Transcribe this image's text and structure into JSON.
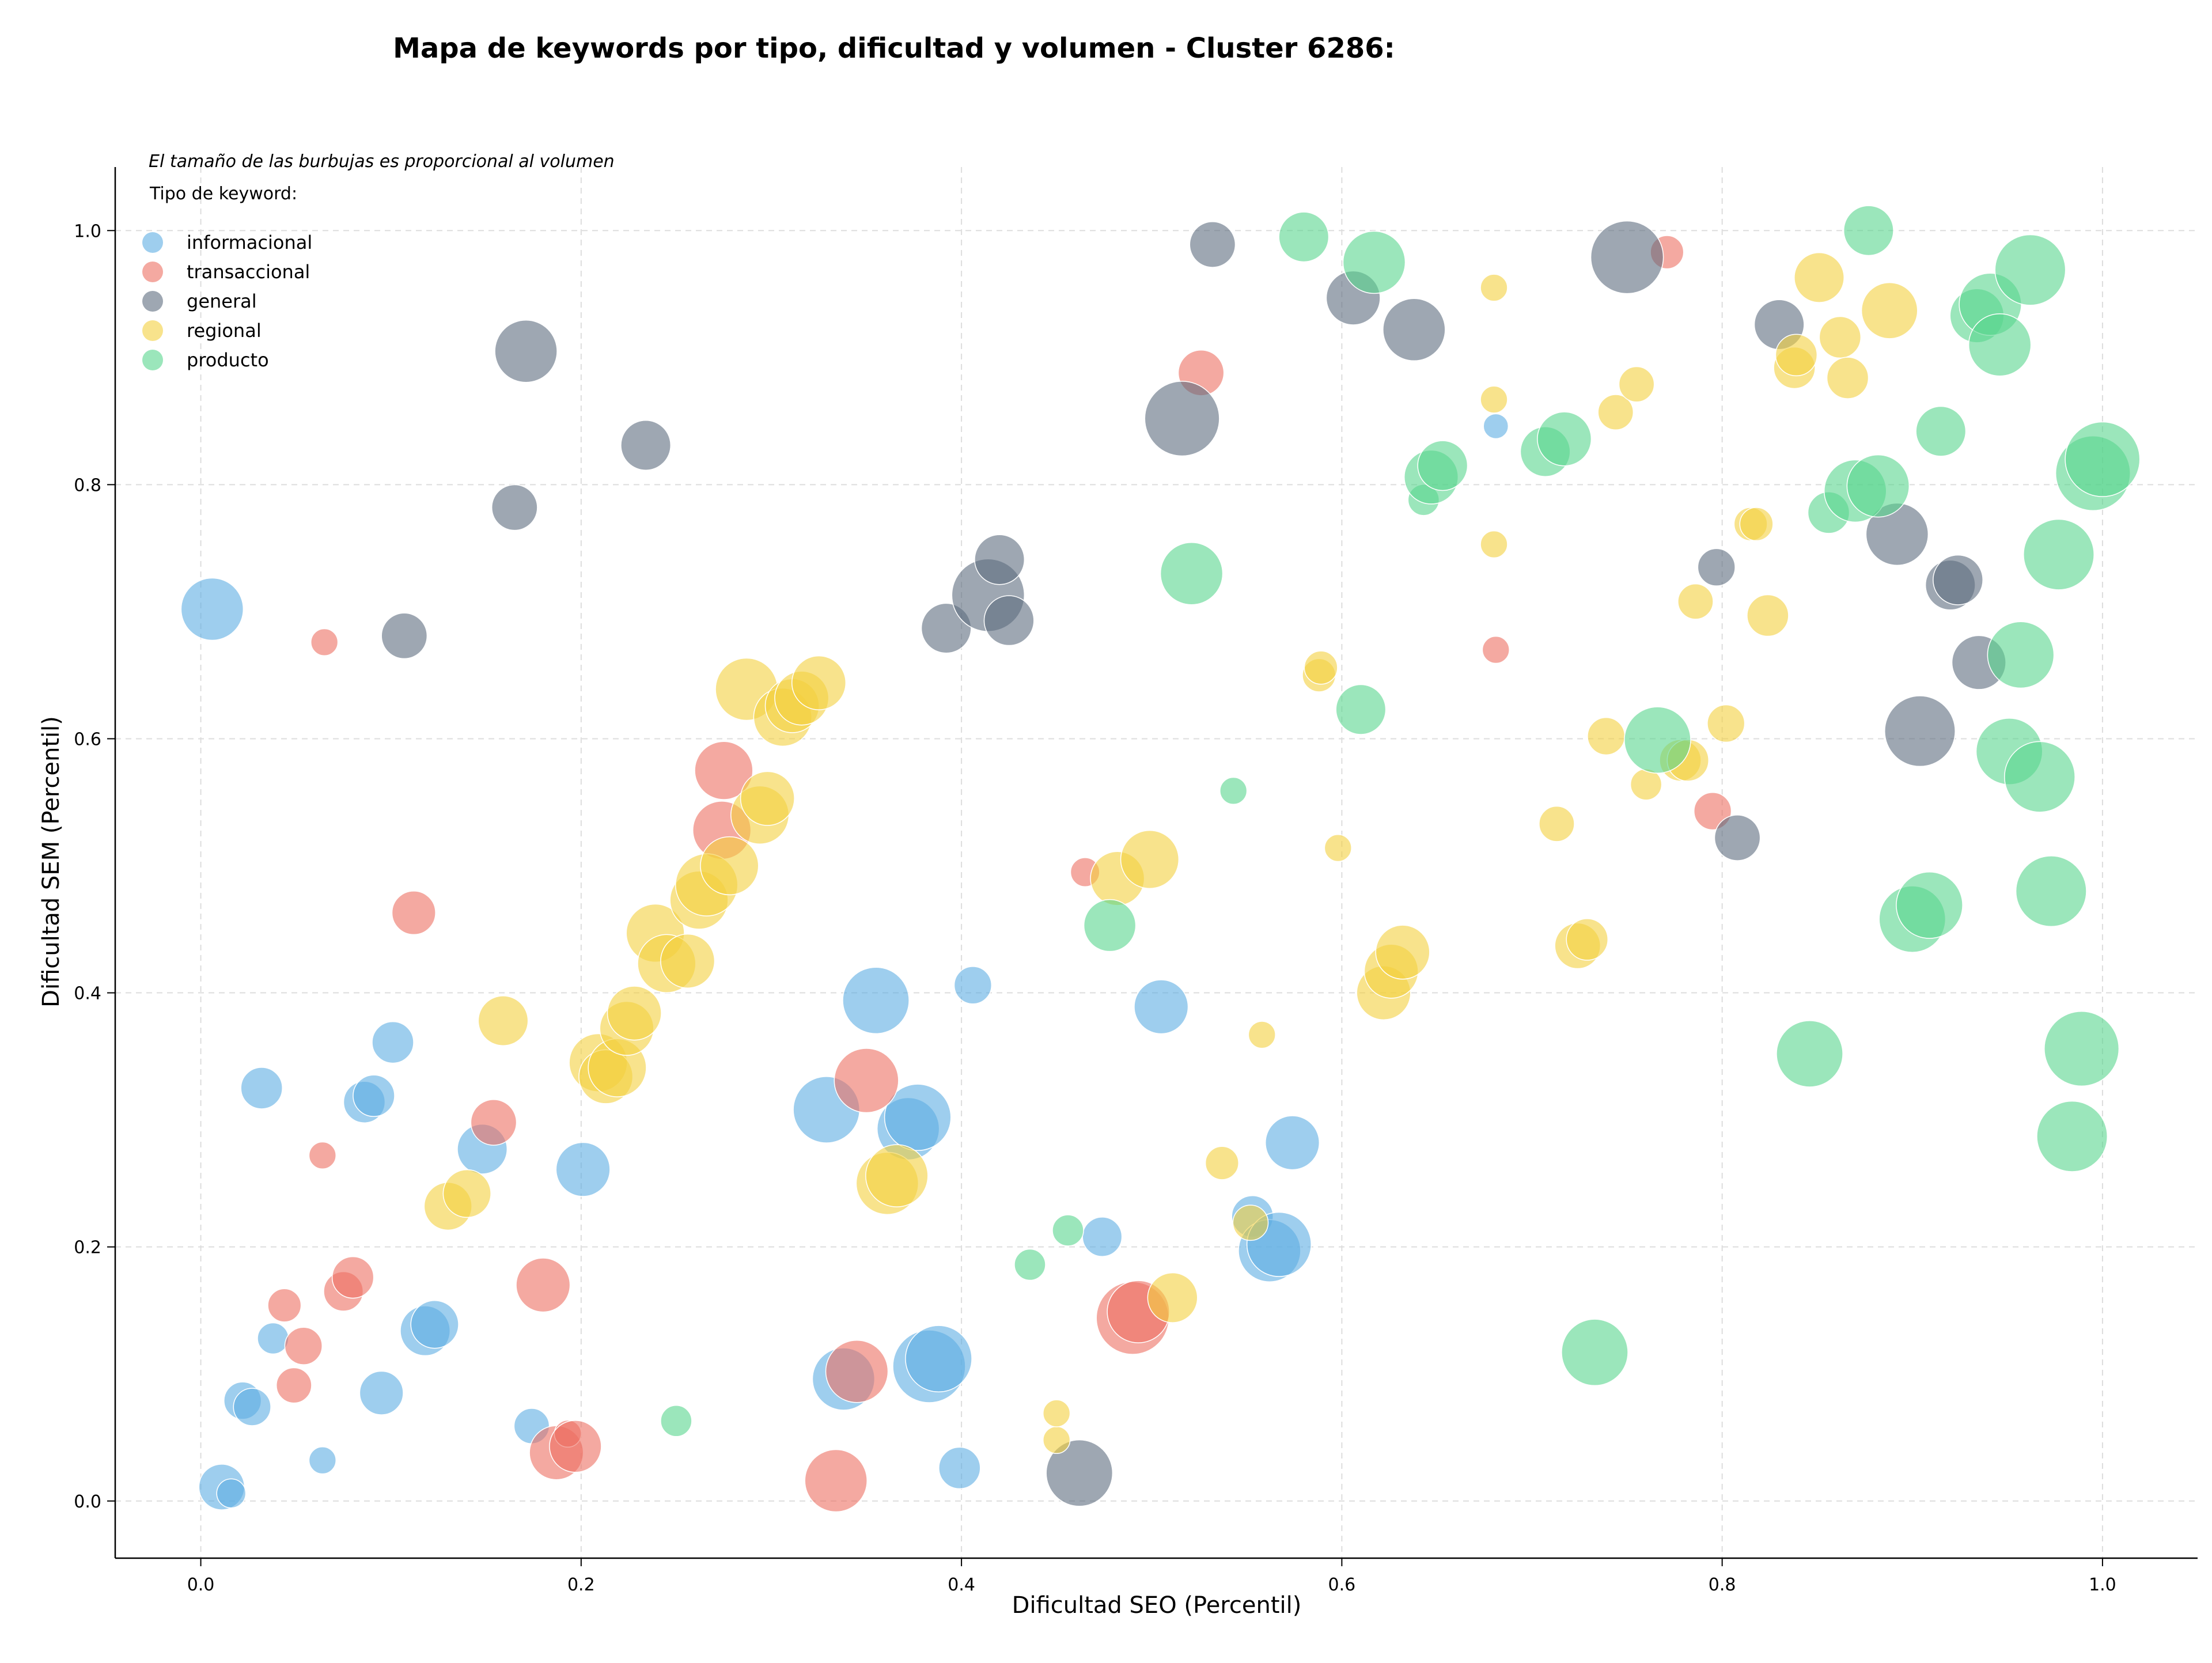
{
  "chart_data": {
    "type": "scatter",
    "title": "Mapa de keywords por tipo, dificultad y volumen - Cluster 6286:",
    "xlabel": "Dificultad SEO (Percentil)",
    "ylabel": "Dificultad SEM (Percentil)",
    "xlim": [
      -0.045,
      1.05
    ],
    "ylim": [
      -0.045,
      1.05
    ],
    "xticks": [
      "0.0",
      "0.2",
      "0.4",
      "0.6",
      "0.8",
      "1.0"
    ],
    "yticks": [
      "0.0",
      "0.2",
      "0.4",
      "0.6",
      "0.8",
      "1.0"
    ],
    "grid": true,
    "legend_position": "top-left",
    "legend_note": "El tamaño de las burbujas es proporcional al volumen",
    "legend_title": "Tipo de keyword:",
    "series": [
      {
        "name": "informacional",
        "color": "#5DADE2",
        "points": [
          [
            0.006,
            0.702,
            3.0
          ],
          [
            0.032,
            0.325,
            2.0
          ],
          [
            0.086,
            0.314,
            2.0
          ],
          [
            0.091,
            0.319,
            2.0
          ],
          [
            0.101,
            0.361,
            2.0
          ],
          [
            0.148,
            0.277,
            2.4
          ],
          [
            0.201,
            0.261,
            2.6
          ],
          [
            0.038,
            0.128,
            1.5
          ],
          [
            0.022,
            0.079,
            1.8
          ],
          [
            0.027,
            0.074,
            1.8
          ],
          [
            0.095,
            0.085,
            2.1
          ],
          [
            0.118,
            0.134,
            2.4
          ],
          [
            0.123,
            0.139,
            2.3
          ],
          [
            0.064,
            0.032,
            1.3
          ],
          [
            0.011,
            0.011,
            2.2
          ],
          [
            0.016,
            0.006,
            1.4
          ],
          [
            0.174,
            0.059,
            1.7
          ],
          [
            0.329,
            0.308,
            3.2
          ],
          [
            0.355,
            0.394,
            3.2
          ],
          [
            0.372,
            0.293,
            3.0
          ],
          [
            0.377,
            0.302,
            3.2
          ],
          [
            0.406,
            0.406,
            1.8
          ],
          [
            0.338,
            0.096,
            3.0
          ],
          [
            0.383,
            0.106,
            3.5
          ],
          [
            0.388,
            0.112,
            3.2
          ],
          [
            0.399,
            0.026,
            2.0
          ],
          [
            0.474,
            0.208,
            1.9
          ],
          [
            0.505,
            0.389,
            2.6
          ],
          [
            0.553,
            0.224,
            2.0
          ],
          [
            0.562,
            0.197,
            3.0
          ],
          [
            0.567,
            0.202,
            3.1
          ],
          [
            0.574,
            0.282,
            2.6
          ],
          [
            0.681,
            0.846,
            1.2
          ]
        ]
      },
      {
        "name": "transaccional",
        "color": "#EC7063",
        "points": [
          [
            0.065,
            0.676,
            1.3
          ],
          [
            0.112,
            0.463,
            2.1
          ],
          [
            0.154,
            0.298,
            2.2
          ],
          [
            0.044,
            0.154,
            1.6
          ],
          [
            0.054,
            0.122,
            1.8
          ],
          [
            0.049,
            0.091,
            1.7
          ],
          [
            0.075,
            0.165,
            1.9
          ],
          [
            0.08,
            0.176,
            2.0
          ],
          [
            0.064,
            0.272,
            1.3
          ],
          [
            0.18,
            0.17,
            2.6
          ],
          [
            0.187,
            0.038,
            2.6
          ],
          [
            0.193,
            0.053,
            1.3
          ],
          [
            0.197,
            0.043,
            2.5
          ],
          [
            0.275,
            0.575,
            2.8
          ],
          [
            0.274,
            0.528,
            2.8
          ],
          [
            0.35,
            0.331,
            3.1
          ],
          [
            0.345,
            0.102,
            3.0
          ],
          [
            0.334,
            0.016,
            3.0
          ],
          [
            0.49,
            0.144,
            3.5
          ],
          [
            0.493,
            0.149,
            3.0
          ],
          [
            0.465,
            0.495,
            1.4
          ],
          [
            0.526,
            0.888,
            2.2
          ],
          [
            0.681,
            0.67,
            1.3
          ],
          [
            0.771,
            0.983,
            1.6
          ],
          [
            0.795,
            0.543,
            1.8
          ]
        ]
      },
      {
        "name": "general",
        "color": "#5D6D7E",
        "points": [
          [
            0.107,
            0.681,
            2.2
          ],
          [
            0.165,
            0.782,
            2.2
          ],
          [
            0.171,
            0.905,
            3.0
          ],
          [
            0.234,
            0.831,
            2.4
          ],
          [
            0.392,
            0.687,
            2.4
          ],
          [
            0.414,
            0.713,
            3.5
          ],
          [
            0.42,
            0.741,
            2.4
          ],
          [
            0.425,
            0.693,
            2.4
          ],
          [
            0.462,
            0.022,
            3.2
          ],
          [
            0.516,
            0.852,
            3.6
          ],
          [
            0.532,
            0.989,
            2.2
          ],
          [
            0.606,
            0.947,
            2.6
          ],
          [
            0.638,
            0.922,
            3.0
          ],
          [
            0.75,
            0.979,
            3.5
          ],
          [
            0.797,
            0.735,
            1.8
          ],
          [
            0.808,
            0.522,
            2.2
          ],
          [
            0.83,
            0.926,
            2.4
          ],
          [
            0.892,
            0.761,
            3.0
          ],
          [
            0.904,
            0.606,
            3.4
          ],
          [
            0.92,
            0.721,
            2.4
          ],
          [
            0.924,
            0.725,
            2.4
          ],
          [
            0.935,
            0.66,
            2.6
          ]
        ]
      },
      {
        "name": "regional",
        "color": "#F4D03F",
        "points": [
          [
            0.13,
            0.232,
            2.3
          ],
          [
            0.14,
            0.242,
            2.3
          ],
          [
            0.159,
            0.378,
            2.4
          ],
          [
            0.209,
            0.345,
            2.8
          ],
          [
            0.213,
            0.334,
            2.6
          ],
          [
            0.219,
            0.341,
            2.8
          ],
          [
            0.224,
            0.372,
            2.6
          ],
          [
            0.228,
            0.384,
            2.6
          ],
          [
            0.239,
            0.447,
            2.8
          ],
          [
            0.245,
            0.423,
            2.8
          ],
          [
            0.256,
            0.425,
            2.6
          ],
          [
            0.262,
            0.473,
            2.8
          ],
          [
            0.266,
            0.485,
            3.0
          ],
          [
            0.278,
            0.5,
            2.8
          ],
          [
            0.287,
            0.639,
            3.0
          ],
          [
            0.294,
            0.54,
            2.8
          ],
          [
            0.298,
            0.553,
            2.6
          ],
          [
            0.306,
            0.617,
            2.8
          ],
          [
            0.311,
            0.626,
            2.6
          ],
          [
            0.316,
            0.632,
            2.6
          ],
          [
            0.325,
            0.644,
            2.6
          ],
          [
            0.361,
            0.25,
            3.0
          ],
          [
            0.366,
            0.256,
            3.0
          ],
          [
            0.45,
            0.048,
            1.3
          ],
          [
            0.45,
            0.069,
            1.3
          ],
          [
            0.482,
            0.49,
            2.6
          ],
          [
            0.499,
            0.505,
            2.8
          ],
          [
            0.511,
            0.16,
            2.4
          ],
          [
            0.537,
            0.266,
            1.6
          ],
          [
            0.552,
            0.219,
            1.7
          ],
          [
            0.558,
            0.367,
            1.3
          ],
          [
            0.588,
            0.65,
            1.6
          ],
          [
            0.589,
            0.656,
            1.6
          ],
          [
            0.598,
            0.514,
            1.3
          ],
          [
            0.622,
            0.4,
            2.6
          ],
          [
            0.626,
            0.417,
            2.6
          ],
          [
            0.632,
            0.432,
            2.6
          ],
          [
            0.68,
            0.955,
            1.3
          ],
          [
            0.68,
            0.867,
            1.3
          ],
          [
            0.68,
            0.753,
            1.3
          ],
          [
            0.713,
            0.533,
            1.7
          ],
          [
            0.724,
            0.437,
            2.2
          ],
          [
            0.729,
            0.442,
            2.0
          ],
          [
            0.739,
            0.602,
            1.8
          ],
          [
            0.744,
            0.857,
            1.7
          ],
          [
            0.755,
            0.879,
            1.7
          ],
          [
            0.76,
            0.564,
            1.5
          ],
          [
            0.778,
            0.583,
            2.0
          ],
          [
            0.782,
            0.583,
            2.0
          ],
          [
            0.786,
            0.708,
            1.7
          ],
          [
            0.802,
            0.612,
            1.8
          ],
          [
            0.815,
            0.769,
            1.6
          ],
          [
            0.818,
            0.769,
            1.6
          ],
          [
            0.824,
            0.697,
            2.0
          ],
          [
            0.838,
            0.892,
            2.0
          ],
          [
            0.839,
            0.902,
            2.0
          ],
          [
            0.851,
            0.963,
            2.4
          ],
          [
            0.862,
            0.916,
            2.0
          ],
          [
            0.866,
            0.884,
            2.0
          ],
          [
            0.888,
            0.937,
            2.7
          ]
        ]
      },
      {
        "name": "producto",
        "color": "#58D68D",
        "points": [
          [
            0.25,
            0.063,
            1.5
          ],
          [
            0.436,
            0.186,
            1.5
          ],
          [
            0.456,
            0.213,
            1.5
          ],
          [
            0.478,
            0.453,
            2.5
          ],
          [
            0.521,
            0.73,
            3.0
          ],
          [
            0.543,
            0.559,
            1.3
          ],
          [
            0.58,
            0.995,
            2.4
          ],
          [
            0.61,
            0.623,
            2.4
          ],
          [
            0.617,
            0.975,
            3.0
          ],
          [
            0.643,
            0.788,
            1.5
          ],
          [
            0.647,
            0.806,
            2.6
          ],
          [
            0.653,
            0.815,
            2.4
          ],
          [
            0.707,
            0.826,
            2.4
          ],
          [
            0.717,
            0.836,
            2.6
          ],
          [
            0.733,
            0.117,
            3.2
          ],
          [
            0.766,
            0.599,
            3.2
          ],
          [
            0.846,
            0.352,
            3.2
          ],
          [
            0.856,
            0.778,
            2.0
          ],
          [
            0.87,
            0.795,
            3.0
          ],
          [
            0.877,
            1.0,
            2.4
          ],
          [
            0.882,
            0.799,
            3.0
          ],
          [
            0.9,
            0.458,
            3.2
          ],
          [
            0.909,
            0.469,
            3.2
          ],
          [
            0.915,
            0.842,
            2.4
          ],
          [
            0.934,
            0.933,
            2.6
          ],
          [
            0.941,
            0.942,
            3.0
          ],
          [
            0.946,
            0.91,
            3.0
          ],
          [
            0.951,
            0.59,
            3.2
          ],
          [
            0.957,
            0.666,
            3.2
          ],
          [
            0.962,
            0.969,
            3.4
          ],
          [
            0.967,
            0.57,
            3.4
          ],
          [
            0.973,
            0.48,
            3.4
          ],
          [
            0.977,
            0.745,
            3.4
          ],
          [
            0.984,
            0.287,
            3.4
          ],
          [
            0.989,
            0.356,
            3.6
          ],
          [
            0.995,
            0.809,
            3.6
          ],
          [
            1.0,
            0.82,
            3.6
          ]
        ]
      }
    ]
  }
}
